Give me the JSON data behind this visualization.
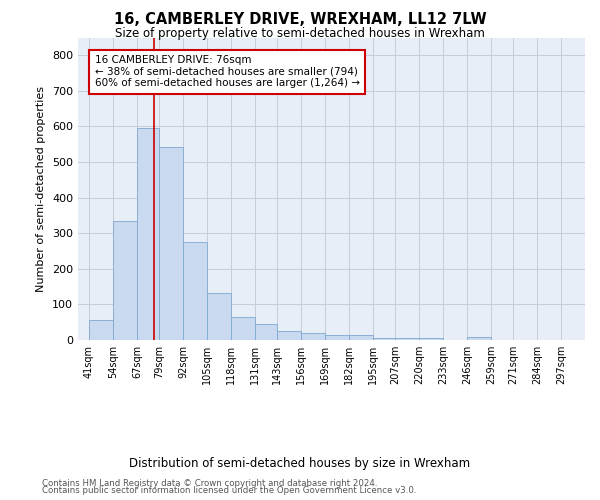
{
  "title1": "16, CAMBERLEY DRIVE, WREXHAM, LL12 7LW",
  "title2": "Size of property relative to semi-detached houses in Wrexham",
  "xlabel": "Distribution of semi-detached houses by size in Wrexham",
  "ylabel": "Number of semi-detached properties",
  "footnote1": "Contains HM Land Registry data © Crown copyright and database right 2024.",
  "footnote2": "Contains public sector information licensed under the Open Government Licence v3.0.",
  "annotation_title": "16 CAMBERLEY DRIVE: 76sqm",
  "annotation_line1": "← 38% of semi-detached houses are smaller (794)",
  "annotation_line2": "60% of semi-detached houses are larger (1,264) →",
  "property_size": 76,
  "bar_left_edges": [
    41,
    54,
    67,
    79,
    92,
    105,
    118,
    131,
    143,
    156,
    169,
    182,
    195,
    207,
    220,
    233,
    246,
    259,
    271,
    284
  ],
  "bar_widths": [
    13,
    13,
    12,
    13,
    13,
    13,
    13,
    12,
    13,
    13,
    13,
    13,
    12,
    13,
    13,
    13,
    13,
    12,
    13,
    13
  ],
  "bar_heights": [
    57,
    335,
    597,
    543,
    275,
    133,
    65,
    44,
    26,
    20,
    15,
    15,
    5,
    7,
    7,
    0,
    8,
    0,
    0,
    0
  ],
  "tick_labels": [
    "41sqm",
    "54sqm",
    "67sqm",
    "79sqm",
    "92sqm",
    "105sqm",
    "118sqm",
    "131sqm",
    "143sqm",
    "156sqm",
    "169sqm",
    "182sqm",
    "195sqm",
    "207sqm",
    "220sqm",
    "233sqm",
    "246sqm",
    "259sqm",
    "271sqm",
    "284sqm",
    "297sqm"
  ],
  "tick_positions": [
    41,
    54,
    67,
    79,
    92,
    105,
    118,
    131,
    143,
    156,
    169,
    182,
    195,
    207,
    220,
    233,
    246,
    259,
    271,
    284,
    297
  ],
  "ylim": [
    0,
    850
  ],
  "yticks": [
    0,
    100,
    200,
    300,
    400,
    500,
    600,
    700,
    800
  ],
  "bar_color": "#c9d9ef",
  "bar_edge_color": "#7fa8d0",
  "grid_color": "#c8cdd6",
  "bg_color": "#e8eef7",
  "vline_x": 76,
  "vline_color": "#cc0000",
  "annotation_box_color": "#cc0000",
  "fig_width": 6.0,
  "fig_height": 5.0,
  "dpi": 100
}
